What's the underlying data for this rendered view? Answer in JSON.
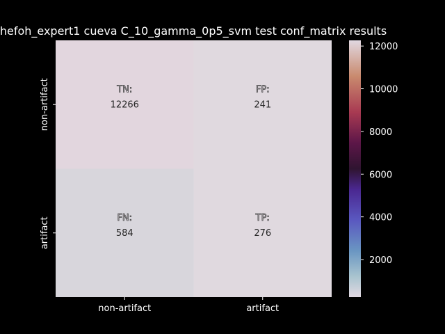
{
  "chart_data": {
    "type": "heatmap",
    "title": "hefoh_expert1 cueva C_10_gamma_0p5_svm test conf_matrix results",
    "x_categories": [
      "non-artifact",
      "artifact"
    ],
    "y_categories": [
      "non-artifact",
      "artifact"
    ],
    "cells": [
      [
        {
          "tag": "TN:",
          "value": 12266
        },
        {
          "tag": "FP:",
          "value": 241
        }
      ],
      [
        {
          "tag": "FN:",
          "value": 584
        },
        {
          "tag": "TP:",
          "value": 276
        }
      ]
    ],
    "colormap": "twilight-like",
    "colorbar": {
      "min": 241,
      "max": 12266,
      "ticks": [
        2000,
        4000,
        6000,
        8000,
        10000,
        12000
      ]
    },
    "cell_colors": [
      "#e2d6de",
      "#e0d9df",
      "#d8d6dc",
      "#e0d9df"
    ]
  }
}
